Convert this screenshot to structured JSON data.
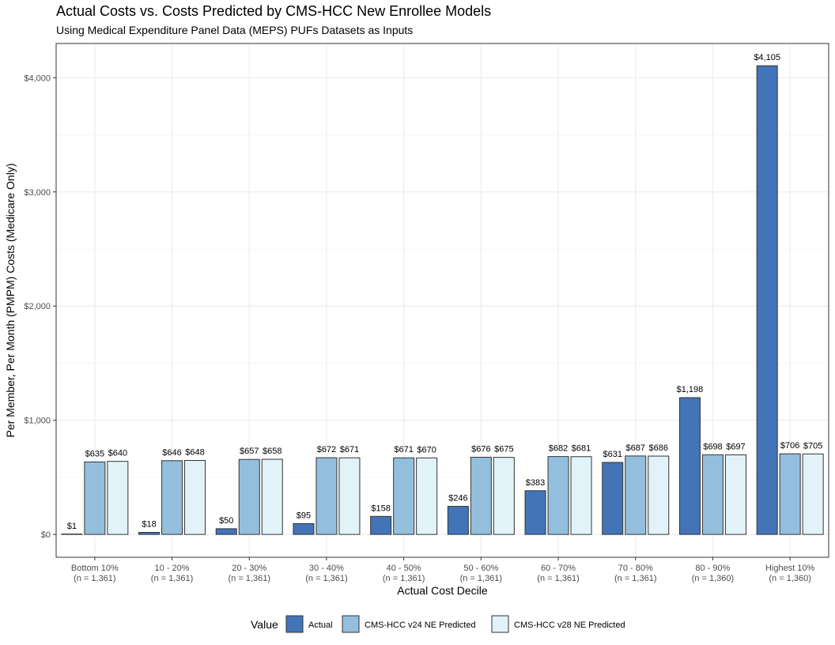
{
  "chart_data": {
    "type": "bar",
    "title": "Actual Costs vs. Costs Predicted by CMS-HCC New Enrollee Models",
    "subtitle": "Using Medical Expenditure Panel Data (MEPS) PUFs Datasets as Inputs",
    "xlabel": "Actual Cost Decile",
    "ylabel": "Per Member, Per Month (PMPM) Costs (Medicare Only)",
    "ylim": [
      -200,
      4300
    ],
    "yticks": [
      0,
      1000,
      2000,
      3000,
      4000
    ],
    "ytick_labels": [
      "$0",
      "$1,000",
      "$2,000",
      "$3,000",
      "$4,000"
    ],
    "grid": true,
    "legend_position": "bottom",
    "legend_title": "Value",
    "categories": [
      {
        "label": "Bottom 10%",
        "sublabel": "(n = 1,361)"
      },
      {
        "label": "10 - 20%",
        "sublabel": "(n = 1,361)"
      },
      {
        "label": "20 - 30%",
        "sublabel": "(n = 1,361)"
      },
      {
        "label": "30 - 40%",
        "sublabel": "(n = 1,361)"
      },
      {
        "label": "40 - 50%",
        "sublabel": "(n = 1,361)"
      },
      {
        "label": "50 - 60%",
        "sublabel": "(n = 1,361)"
      },
      {
        "label": "60 - 70%",
        "sublabel": "(n = 1,361)"
      },
      {
        "label": "70 - 80%",
        "sublabel": "(n = 1,361)"
      },
      {
        "label": "80 - 90%",
        "sublabel": "(n = 1,360)"
      },
      {
        "label": "Highest 10%",
        "sublabel": "(n = 1,360)"
      }
    ],
    "series": [
      {
        "name": "Actual",
        "color": "#4374b8",
        "values": [
          1,
          18,
          50,
          95,
          158,
          246,
          383,
          631,
          1198,
          4105
        ],
        "labels": [
          "$1",
          "$18",
          "$50",
          "$95",
          "$158",
          "$246",
          "$383",
          "$631",
          "$1,198",
          "$4,105"
        ]
      },
      {
        "name": "CMS-HCC v24 NE Predicted",
        "color": "#93bfdd",
        "values": [
          635,
          646,
          657,
          672,
          671,
          676,
          682,
          687,
          698,
          706
        ],
        "labels": [
          "$635",
          "$646",
          "$657",
          "$672",
          "$671",
          "$676",
          "$682",
          "$687",
          "$698",
          "$706"
        ]
      },
      {
        "name": "CMS-HCC v28 NE Predicted",
        "color": "#e1f3f8",
        "values": [
          640,
          648,
          658,
          671,
          670,
          675,
          681,
          686,
          697,
          705
        ],
        "labels": [
          "$640",
          "$648",
          "$658",
          "$671",
          "$670",
          "$675",
          "$681",
          "$686",
          "$697",
          "$705"
        ]
      }
    ]
  }
}
